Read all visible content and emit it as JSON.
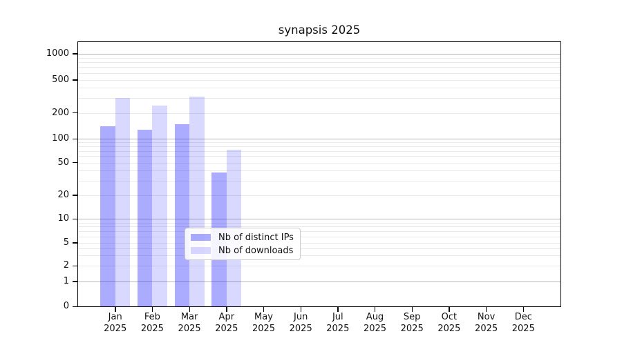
{
  "chart_data": {
    "type": "bar",
    "title": "synapsis 2025",
    "categories": [
      "Jan",
      "Feb",
      "Mar",
      "Apr",
      "May",
      "Jun",
      "Jul",
      "Aug",
      "Sep",
      "Oct",
      "Nov",
      "Dec"
    ],
    "x_tick_subline": "2025",
    "series": [
      {
        "name": "Nb of distinct IPs",
        "color": "rgba(0,0,255,0.33)",
        "values": [
          140,
          128,
          147,
          38,
          null,
          null,
          null,
          null,
          null,
          null,
          null,
          null
        ]
      },
      {
        "name": "Nb of downloads",
        "color": "rgba(0,0,255,0.15)",
        "values": [
          303,
          245,
          312,
          72,
          null,
          null,
          null,
          null,
          null,
          null,
          null,
          null
        ]
      }
    ],
    "y_ticks": [
      0,
      1,
      2,
      5,
      10,
      20,
      50,
      100,
      200,
      500,
      1000
    ],
    "y_scale": "symlog (linear 0-1, log decades above)",
    "ylim": [
      0,
      2000
    ],
    "xlabel": "",
    "ylabel": "",
    "grid": {
      "major_values": [
        1,
        10,
        100,
        1000
      ],
      "major_color": "#b3b3b3",
      "minor_color": "#e9e9e9"
    },
    "legend_position": "lower center-left inside plot"
  }
}
